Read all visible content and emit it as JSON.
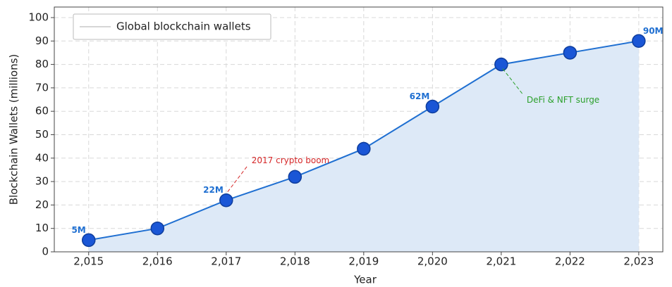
{
  "chart_data": {
    "type": "line",
    "xlabel": "Year",
    "ylabel": "Blockchain Wallets (millions)",
    "x": [
      2015,
      2016,
      2017,
      2018,
      2019,
      2020,
      2021,
      2022,
      2023
    ],
    "series": [
      {
        "name": "Global blockchain wallets",
        "color": "#1f6fd1",
        "marker_color": "#1a56d6",
        "fill_color": "#dde9f7",
        "legend_color": "#c8c8c8",
        "values": [
          5,
          10,
          22,
          32,
          44,
          62,
          80,
          85,
          90
        ],
        "value_labels": [
          "5M",
          null,
          "22M",
          null,
          null,
          "62M",
          null,
          null,
          "90M"
        ]
      }
    ],
    "xlim": [
      2014.5,
      2023.35
    ],
    "ylim": [
      0,
      104.5
    ],
    "xticks": [
      {
        "value": 2015,
        "label": "2,015"
      },
      {
        "value": 2016,
        "label": "2,016"
      },
      {
        "value": 2017,
        "label": "2,017"
      },
      {
        "value": 2018,
        "label": "2,018"
      },
      {
        "value": 2019,
        "label": "2,019"
      },
      {
        "value": 2020,
        "label": "2,020"
      },
      {
        "value": 2021,
        "label": "2,021"
      },
      {
        "value": 2022,
        "label": "2,022"
      },
      {
        "value": 2023,
        "label": "2,023"
      }
    ],
    "yticks": [
      0,
      10,
      20,
      30,
      40,
      50,
      60,
      70,
      80,
      90,
      100
    ],
    "grid": true,
    "legend": "upper left",
    "annotations": [
      {
        "text": "2017 crypto boom",
        "x": 2017,
        "y": 22,
        "color": "#d62728"
      },
      {
        "text": "DeFi & NFT surge",
        "x": 2021,
        "y": 80,
        "color": "#2ca02c"
      }
    ]
  }
}
